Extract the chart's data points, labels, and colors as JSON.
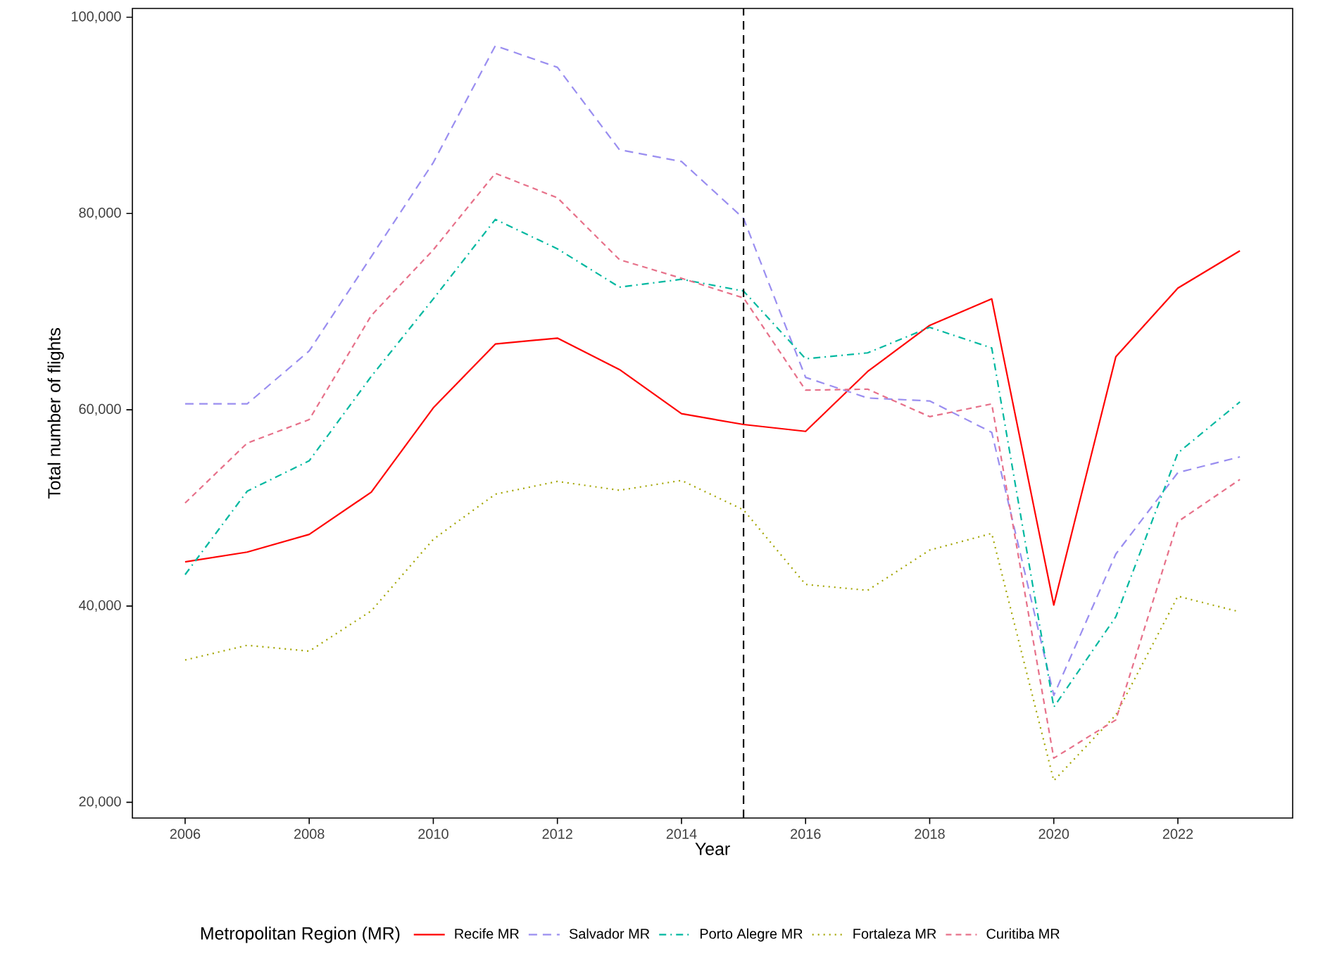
{
  "chart_data": {
    "type": "line",
    "xlabel": "Year",
    "ylabel": "Total number of flights",
    "legend_title": "Metropolitan Region (MR)",
    "legend": "bottom",
    "grid": false,
    "x": [
      2006,
      2007,
      2008,
      2009,
      2010,
      2011,
      2012,
      2013,
      2014,
      2015,
      2016,
      2017,
      2018,
      2019,
      2020,
      2021,
      2022,
      2023
    ],
    "series": [
      {
        "name": "Recife MR",
        "color": "#ff0000",
        "line_style": "solid",
        "values": [
          44500,
          45500,
          47300,
          51600,
          60200,
          66700,
          67300,
          64100,
          59600,
          58500,
          57800,
          63900,
          68600,
          71300,
          40100,
          65400,
          72400,
          76200
        ]
      },
      {
        "name": "Salvador MR",
        "color": "#9a8ef0",
        "line_style": "dashed",
        "values": [
          60600,
          60600,
          66000,
          75600,
          85200,
          97100,
          94900,
          86500,
          85300,
          79500,
          63300,
          61200,
          60900,
          57700,
          30900,
          45300,
          53600,
          55200
        ]
      },
      {
        "name": "Porto Alegre MR",
        "color": "#00b8a0",
        "line_style": "dashdot",
        "values": [
          43200,
          51700,
          54800,
          63400,
          71300,
          79400,
          76400,
          72500,
          73300,
          72100,
          65200,
          65800,
          68400,
          66300,
          29700,
          38900,
          55600,
          60800
        ]
      },
      {
        "name": "Fortaleza MR",
        "color": "#a3a500",
        "line_style": "dotted",
        "values": [
          34500,
          36000,
          35400,
          39500,
          46800,
          51400,
          52700,
          51800,
          52800,
          49800,
          42200,
          41600,
          45700,
          47400,
          22200,
          28900,
          41000,
          39400
        ]
      },
      {
        "name": "Curitiba MR",
        "color": "#e7718a",
        "line_style": "dashed",
        "values": [
          50500,
          56600,
          59000,
          69600,
          76300,
          84100,
          81600,
          75300,
          73400,
          71400,
          62000,
          62100,
          59300,
          60600,
          24500,
          28400,
          48600,
          52900
        ]
      }
    ],
    "ref_lines": [
      {
        "axis": "x",
        "value": 2015,
        "color": "#000000",
        "line_style": "dashed"
      }
    ],
    "xlim": [
      2005.15,
      2023.85
    ],
    "ylim": [
      18400,
      100900
    ],
    "xticks": [
      2006,
      2008,
      2010,
      2012,
      2014,
      2016,
      2018,
      2020,
      2022
    ],
    "yticks": [
      {
        "value": 20000,
        "label": "20,000"
      },
      {
        "value": 40000,
        "label": "40,000"
      },
      {
        "value": 60000,
        "label": "60,000"
      },
      {
        "value": 80000,
        "label": "80,000"
      },
      {
        "value": 100000,
        "label": "100,000"
      }
    ]
  }
}
